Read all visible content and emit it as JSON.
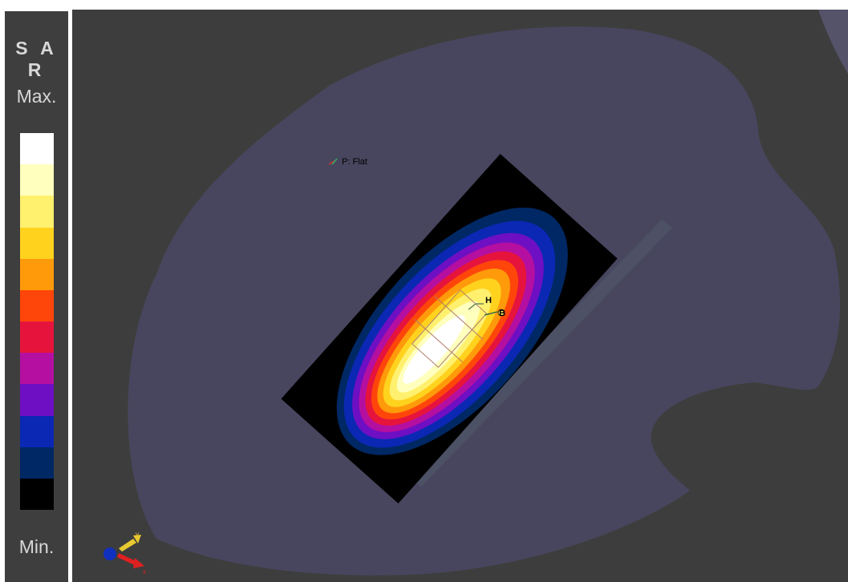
{
  "legend": {
    "title": "S A R",
    "max_label": "Max.",
    "min_label": "Min.",
    "colors": [
      "#ffffff",
      "#ffffbe",
      "#fff06e",
      "#ffd21e",
      "#ff9a0a",
      "#ff460a",
      "#e6143c",
      "#b40fa0",
      "#6e0fc3",
      "#0a28b4",
      "#002864",
      "#000000"
    ]
  },
  "scene": {
    "probe_label": "P: Flat",
    "marker_h": "H",
    "marker_b": "B",
    "axis_y": "y",
    "axis_x": "x",
    "phantom_color": "#48465e",
    "background_color": "#3d3d3d"
  }
}
